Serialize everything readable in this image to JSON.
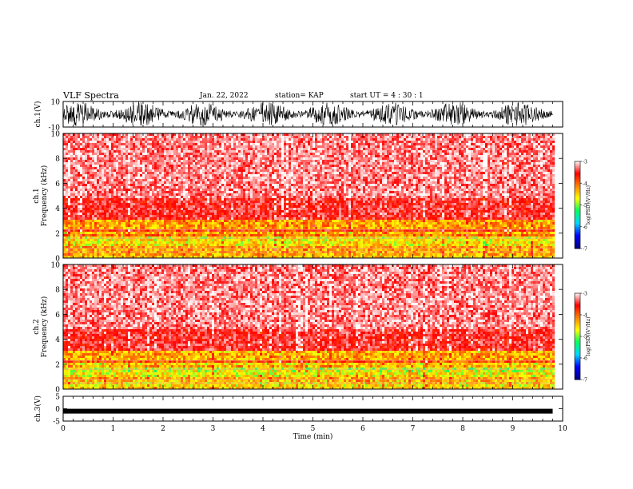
{
  "header": {
    "title": "VLF Spectra",
    "date": "Jan. 22, 2022",
    "station": "station= KAP",
    "start_ut": "start  UT =   4 : 30 : 1"
  },
  "chart_data": [
    {
      "type": "line",
      "panel": "ch1-waveform",
      "ylabel": "ch.1(V)",
      "ylim": [
        -10,
        10
      ],
      "ytick_labels": [
        "10",
        "-10"
      ],
      "xlim": [
        0,
        10
      ],
      "x_data_extent": [
        0,
        9.8
      ],
      "color": "#000000"
    },
    {
      "type": "heatmap",
      "panel": "ch1-spectrogram",
      "ylabel": "ch.1\nFrequency  (kHz)",
      "ylim": [
        0,
        10
      ],
      "ytick_labels": [
        "0",
        "2",
        "4",
        "6",
        "8",
        "10"
      ],
      "xlim": [
        0,
        10
      ],
      "x_data_extent": [
        0,
        9.8
      ],
      "colorbar": {
        "label": "log(PSD)(V²/Hz)",
        "range": [
          -7,
          -3
        ],
        "tick_labels": [
          "-3",
          "-4",
          "-5",
          "-6",
          "-7"
        ],
        "colors": [
          "#000080",
          "#0000ff",
          "#00d8ff",
          "#00ff60",
          "#ffff00",
          "#ff8000",
          "#ff0000",
          "#ffffff"
        ]
      }
    },
    {
      "type": "heatmap",
      "panel": "ch2-spectrogram",
      "ylabel": "ch.2\nFrequency  (kHz)",
      "ylim": [
        0,
        10
      ],
      "ytick_labels": [
        "0",
        "2",
        "4",
        "6",
        "8",
        "10"
      ],
      "xlim": [
        0,
        10
      ],
      "x_data_extent": [
        0,
        9.8
      ],
      "colorbar": {
        "label": "log(PSD)(V²/Hz)",
        "range": [
          -7,
          -3
        ],
        "tick_labels": [
          "-3",
          "-4",
          "-5",
          "-6",
          "-7"
        ],
        "colors": [
          "#000080",
          "#0000ff",
          "#00d8ff",
          "#00ff60",
          "#ffff00",
          "#ff8000",
          "#ff0000",
          "#ffffff"
        ]
      }
    },
    {
      "type": "line",
      "panel": "ch3-waveform",
      "ylabel": "ch.3(V)",
      "ylim": [
        -5,
        5
      ],
      "ytick_labels": [
        "5",
        "0",
        "-5"
      ],
      "xlim": [
        0,
        10
      ],
      "x_data_extent": [
        0,
        9.8
      ],
      "baseline_value": -1,
      "xlabel": "Time  (min)",
      "xtick_labels": [
        "0",
        "1",
        "2",
        "3",
        "4",
        "5",
        "6",
        "7",
        "8",
        "9",
        "10"
      ],
      "color": "#000000"
    }
  ]
}
